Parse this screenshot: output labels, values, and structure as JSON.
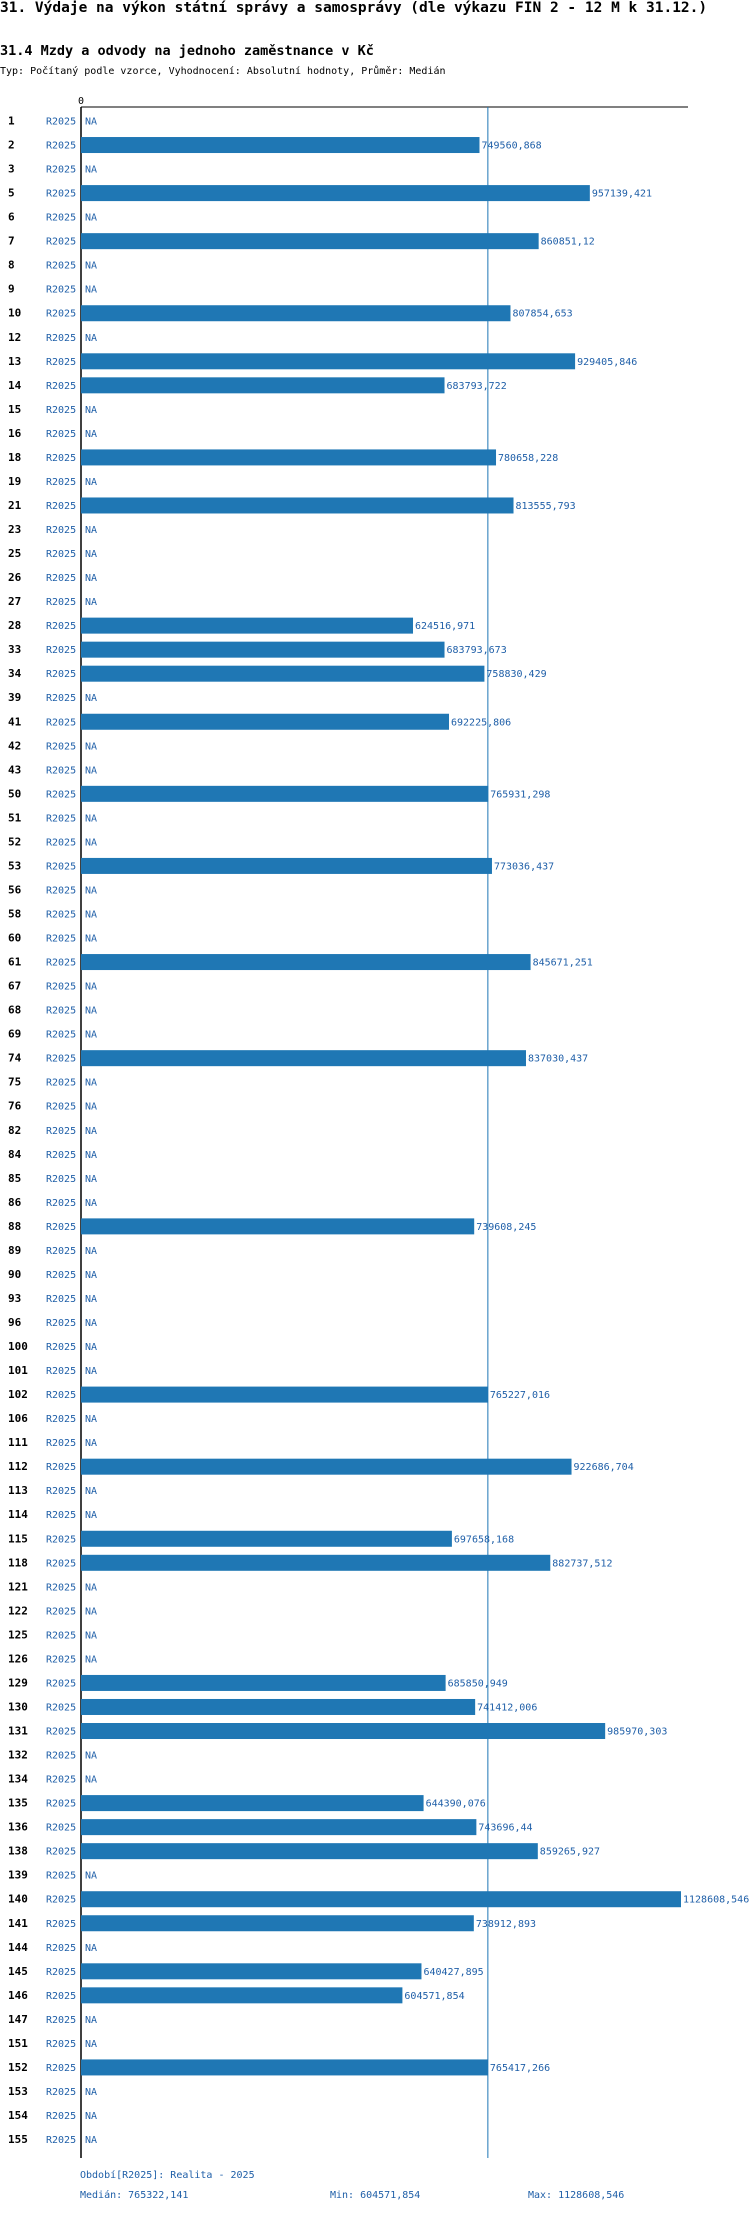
{
  "header": {
    "title": "31. Výdaje na výkon státní správy a samosprávy (dle výkazu FIN 2 - 12 M k 31.12.)",
    "subtitle": "31.4 Mzdy a odvody na jednoho zaměstnance v Kč",
    "meta": "Typ: Počítaný podle vzorce, Vyhodnocení: Absolutní hodnoty, Průměr: Medián"
  },
  "colors": {
    "bar": "#1f77b4",
    "value_text": "#1f5fa8",
    "axis": "#000000",
    "median_line": "#1f77b4"
  },
  "chart_data": {
    "type": "bar",
    "orientation": "horizontal",
    "series_label": "R2025",
    "na_label": "NA",
    "axis_zero_label": "0",
    "median": 765322.141,
    "xlim": [
      0,
      1128608.546
    ],
    "categories": [
      "1",
      "2",
      "3",
      "5",
      "6",
      "7",
      "8",
      "9",
      "10",
      "12",
      "13",
      "14",
      "15",
      "16",
      "18",
      "19",
      "21",
      "23",
      "25",
      "26",
      "27",
      "28",
      "33",
      "34",
      "39",
      "41",
      "42",
      "43",
      "50",
      "51",
      "52",
      "53",
      "56",
      "58",
      "60",
      "61",
      "67",
      "68",
      "69",
      "74",
      "75",
      "76",
      "82",
      "84",
      "85",
      "86",
      "88",
      "89",
      "90",
      "93",
      "96",
      "100",
      "101",
      "102",
      "106",
      "111",
      "112",
      "113",
      "114",
      "115",
      "118",
      "121",
      "122",
      "125",
      "126",
      "129",
      "130",
      "131",
      "132",
      "134",
      "135",
      "136",
      "138",
      "139",
      "140",
      "141",
      "144",
      "145",
      "146",
      "147",
      "151",
      "152",
      "153",
      "154",
      "155"
    ],
    "values": [
      null,
      749560.868,
      null,
      957139.421,
      null,
      860851.12,
      null,
      null,
      807854.653,
      null,
      929405.846,
      683793.722,
      null,
      null,
      780658.228,
      null,
      813555.793,
      null,
      null,
      null,
      null,
      624516.971,
      683793.673,
      758830.429,
      null,
      692225.806,
      null,
      null,
      765931.298,
      null,
      null,
      773036.437,
      null,
      null,
      null,
      845671.251,
      null,
      null,
      null,
      837030.437,
      null,
      null,
      null,
      null,
      null,
      null,
      739608.245,
      null,
      null,
      null,
      null,
      null,
      null,
      765227.016,
      null,
      null,
      922686.704,
      null,
      null,
      697658.168,
      882737.512,
      null,
      null,
      null,
      null,
      685850.949,
      741412.006,
      985970.303,
      null,
      null,
      644390.076,
      743696.44,
      859265.927,
      null,
      1128608.546,
      738912.893,
      null,
      640427.895,
      604571.854,
      null,
      null,
      765417.266,
      null,
      null,
      null
    ],
    "value_labels": [
      null,
      "749560,868",
      null,
      "957139,421",
      null,
      "860851,12",
      null,
      null,
      "807854,653",
      null,
      "929405,846",
      "683793,722",
      null,
      null,
      "780658,228",
      null,
      "813555,793",
      null,
      null,
      null,
      null,
      "624516,971",
      "683793,673",
      "758830,429",
      null,
      "692225,806",
      null,
      null,
      "765931,298",
      null,
      null,
      "773036,437",
      null,
      null,
      null,
      "845671,251",
      null,
      null,
      null,
      "837030,437",
      null,
      null,
      null,
      null,
      null,
      null,
      "739608,245",
      null,
      null,
      null,
      null,
      null,
      null,
      "765227,016",
      null,
      null,
      "922686,704",
      null,
      null,
      "697658,168",
      "882737,512",
      null,
      null,
      null,
      null,
      "685850,949",
      "741412,006",
      "985970,303",
      null,
      null,
      "644390,076",
      "743696,44",
      "859265,927",
      null,
      "1128608,546",
      "738912,893",
      null,
      "640427,895",
      "604571,854",
      null,
      null,
      "765417,266",
      null,
      null,
      null
    ]
  },
  "footer": {
    "period": "Období[R2025]: Realita - 2025",
    "median": "Medián: 765322,141",
    "min": "Min: 604571,854",
    "max": "Max: 1128608,546"
  }
}
